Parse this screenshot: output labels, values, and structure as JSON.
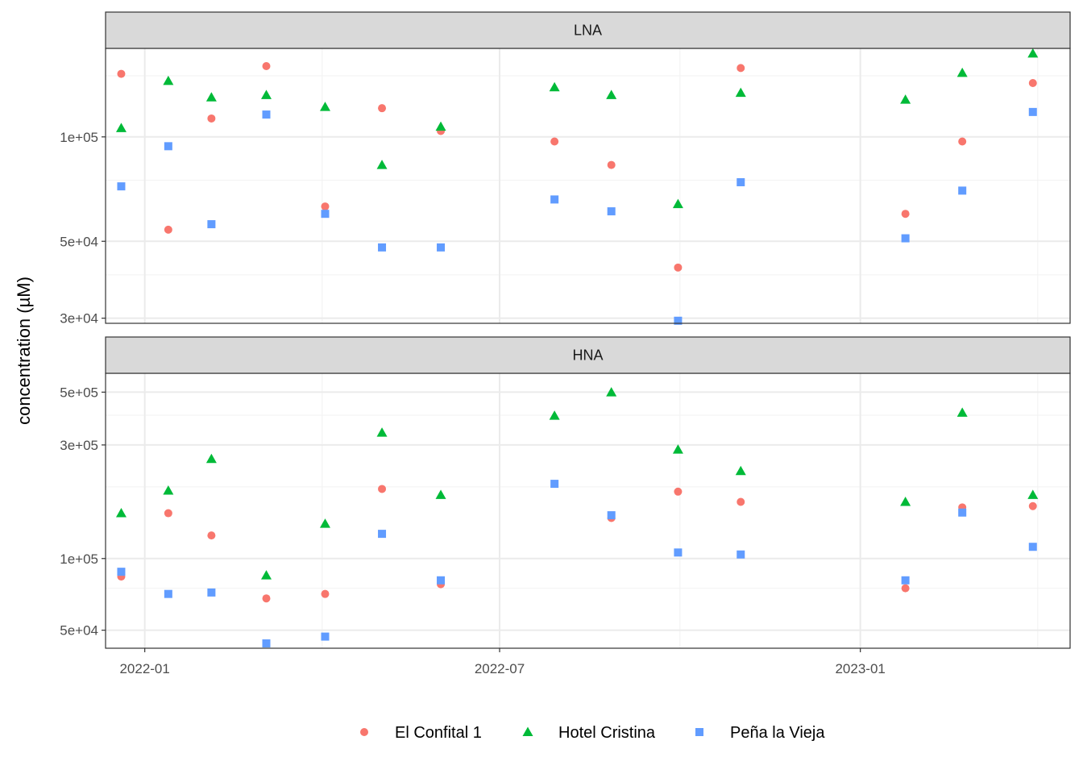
{
  "chart_data": {
    "type": "scatter",
    "ylabel": "concentration (µM)",
    "xlabel": "",
    "x_ticks": [
      "2022-01-01",
      "2022-07-01",
      "2023-01-01"
    ],
    "x_tick_labels": [
      "2022-01",
      "2022-07",
      "2023-01"
    ],
    "xlim": [
      "2021-12-12",
      "2023-04-18"
    ],
    "y_scale": "log",
    "legend_position": "bottom",
    "series": [
      {
        "name": "El Confital 1",
        "color": "#F8766D",
        "shape": "circle"
      },
      {
        "name": "Hotel Cristina",
        "color": "#00BA38",
        "shape": "triangle"
      },
      {
        "name": "Peña la Vieja",
        "color": "#619CFF",
        "shape": "square"
      }
    ],
    "panels": [
      {
        "label": "LNA",
        "ylim": [
          29000,
          180000
        ],
        "y_ticks": [
          30000,
          50000,
          100000
        ],
        "y_tick_labels": [
          "3e+04",
          "5e+04",
          "1e+05"
        ],
        "y_minor": [
          40000,
          75000,
          150000
        ],
        "points": [
          {
            "date": "2021-12-20",
            "El Confital 1": 152000,
            "Hotel Cristina": 106000,
            "Peña la Vieja": 72000
          },
          {
            "date": "2022-01-13",
            "El Confital 1": 54000,
            "Hotel Cristina": 145000,
            "Peña la Vieja": 94000
          },
          {
            "date": "2022-02-04",
            "El Confital 1": 113000,
            "Hotel Cristina": 130000,
            "Peña la Vieja": 56000
          },
          {
            "date": "2022-03-04",
            "El Confital 1": 160000,
            "Hotel Cristina": 132000,
            "Peña la Vieja": 116000
          },
          {
            "date": "2022-04-03",
            "El Confital 1": 63000,
            "Hotel Cristina": 122000,
            "Peña la Vieja": 60000
          },
          {
            "date": "2022-05-02",
            "El Confital 1": 121000,
            "Hotel Cristina": 83000,
            "Peña la Vieja": 48000
          },
          {
            "date": "2022-06-01",
            "El Confital 1": 104000,
            "Hotel Cristina": 107000,
            "Peña la Vieja": 48000
          },
          {
            "date": "2022-07-29",
            "El Confital 1": 97000,
            "Hotel Cristina": 139000,
            "Peña la Vieja": 66000
          },
          {
            "date": "2022-08-27",
            "El Confital 1": 83000,
            "Hotel Cristina": 132000,
            "Peña la Vieja": 61000
          },
          {
            "date": "2022-09-30",
            "El Confital 1": 42000,
            "Hotel Cristina": 64000,
            "Peña la Vieja": 29500
          },
          {
            "date": "2022-11-01",
            "El Confital 1": 158000,
            "Hotel Cristina": 134000,
            "Peña la Vieja": 74000
          },
          {
            "date": "2023-01-24",
            "El Confital 1": 60000,
            "Hotel Cristina": 128000,
            "Peña la Vieja": 51000
          },
          {
            "date": "2023-02-22",
            "El Confital 1": 97000,
            "Hotel Cristina": 153000,
            "Peña la Vieja": 70000
          },
          {
            "date": "2023-03-30",
            "El Confital 1": 143000,
            "Hotel Cristina": 174000,
            "Peña la Vieja": 118000
          }
        ]
      },
      {
        "label": "HNA",
        "ylim": [
          42000,
          600000
        ],
        "y_ticks": [
          50000,
          100000,
          300000,
          500000
        ],
        "y_tick_labels": [
          "5e+04",
          "1e+05",
          "3e+05",
          "5e+05"
        ],
        "y_minor": [
          75000,
          200000,
          400000
        ],
        "points": [
          {
            "date": "2021-12-20",
            "El Confital 1": 84000,
            "Hotel Cristina": 155000,
            "Peña la Vieja": 88000
          },
          {
            "date": "2022-01-13",
            "El Confital 1": 155000,
            "Hotel Cristina": 193000,
            "Peña la Vieja": 71000
          },
          {
            "date": "2022-02-04",
            "El Confital 1": 125000,
            "Hotel Cristina": 262000,
            "Peña la Vieja": 72000
          },
          {
            "date": "2022-03-04",
            "El Confital 1": 68000,
            "Hotel Cristina": 85000,
            "Peña la Vieja": 44000
          },
          {
            "date": "2022-04-03",
            "El Confital 1": 71000,
            "Hotel Cristina": 140000,
            "Peña la Vieja": 47000
          },
          {
            "date": "2022-05-02",
            "El Confital 1": 196000,
            "Hotel Cristina": 338000,
            "Peña la Vieja": 127000
          },
          {
            "date": "2022-06-01",
            "El Confital 1": 78000,
            "Hotel Cristina": 185000,
            "Peña la Vieja": 81000
          },
          {
            "date": "2022-07-29",
            "El Confital 1": "",
            "Hotel Cristina": 398000,
            "Peña la Vieja": 206000
          },
          {
            "date": "2022-08-27",
            "El Confital 1": 148000,
            "Hotel Cristina": 499000,
            "Peña la Vieja": 152000
          },
          {
            "date": "2022-09-30",
            "El Confital 1": 191000,
            "Hotel Cristina": 287000,
            "Peña la Vieja": 106000
          },
          {
            "date": "2022-11-01",
            "El Confital 1": 173000,
            "Hotel Cristina": 233000,
            "Peña la Vieja": 104000
          },
          {
            "date": "2023-01-24",
            "El Confital 1": 75000,
            "Hotel Cristina": 173000,
            "Peña la Vieja": 81000
          },
          {
            "date": "2023-02-22",
            "El Confital 1": 164000,
            "Hotel Cristina": 410000,
            "Peña la Vieja": 156000
          },
          {
            "date": "2023-03-30",
            "El Confital 1": 166000,
            "Hotel Cristina": 185000,
            "Peña la Vieja": 112000
          }
        ]
      }
    ]
  }
}
